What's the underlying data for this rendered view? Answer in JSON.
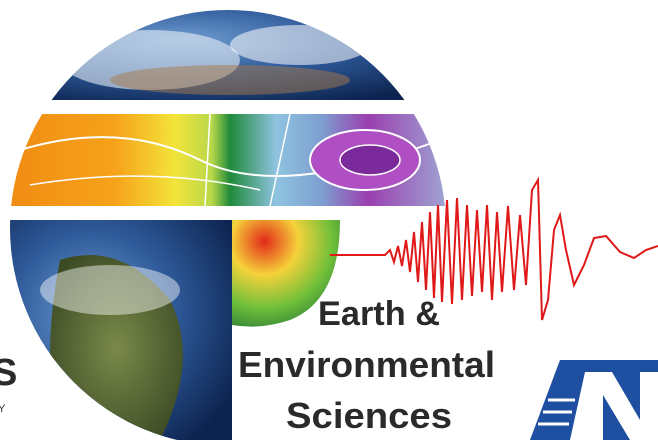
{
  "logo": {
    "title_lines": [
      "Earth &",
      "Environmental",
      "Sciences"
    ]
  },
  "edge_fragments": [
    "S",
    "Y"
  ]
}
